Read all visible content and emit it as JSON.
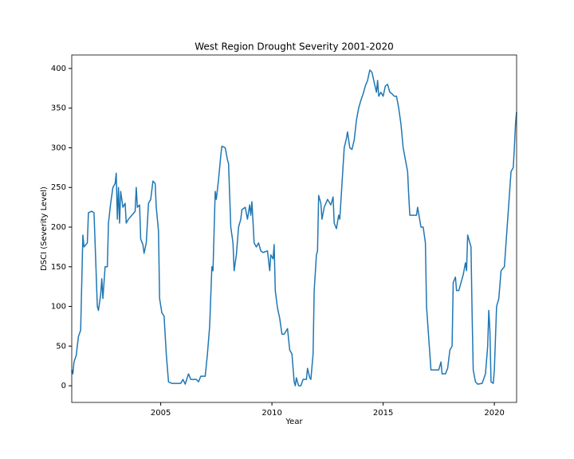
{
  "chart_data": {
    "type": "line",
    "title": "West Region Drought Severity 2001-2020",
    "xlabel": "Year",
    "ylabel": "DSCI (Severity Level)",
    "color": "#1f77b4",
    "xlim": [
      2001,
      2021
    ],
    "xticks": [
      2005,
      2010,
      2015,
      2020
    ],
    "ylim": [
      -21,
      417
    ],
    "yticks": [
      0,
      50,
      100,
      150,
      200,
      250,
      300,
      350,
      400
    ],
    "x": [
      2001.0,
      2001.05,
      2001.1,
      2001.2,
      2001.3,
      2001.4,
      2001.5,
      2001.55,
      2001.7,
      2001.75,
      2001.9,
      2002.0,
      2002.05,
      2002.15,
      2002.2,
      2002.3,
      2002.35,
      2002.4,
      2002.5,
      2002.6,
      2002.65,
      2002.75,
      2002.85,
      2002.95,
      2003.0,
      2003.05,
      2003.1,
      2003.15,
      2003.2,
      2003.3,
      2003.4,
      2003.45,
      2003.55,
      2003.7,
      2003.85,
      2003.9,
      2003.95,
      2004.05,
      2004.1,
      2004.2,
      2004.25,
      2004.35,
      2004.45,
      2004.55,
      2004.65,
      2004.75,
      2004.8,
      2004.9,
      2004.95,
      2005.05,
      2005.15,
      2005.25,
      2005.35,
      2005.5,
      2005.7,
      2005.9,
      2006.0,
      2006.1,
      2006.25,
      2006.35,
      2006.6,
      2006.7,
      2006.8,
      2007.0,
      2007.1,
      2007.2,
      2007.3,
      2007.35,
      2007.45,
      2007.5,
      2007.6,
      2007.7,
      2007.75,
      2007.9,
      2008.0,
      2008.05,
      2008.1,
      2008.15,
      2008.25,
      2008.3,
      2008.4,
      2008.5,
      2008.6,
      2008.65,
      2008.8,
      2008.9,
      2009.0,
      2009.05,
      2009.1,
      2009.2,
      2009.3,
      2009.4,
      2009.5,
      2009.6,
      2009.8,
      2009.9,
      2009.95,
      2010.05,
      2010.1,
      2010.15,
      2010.25,
      2010.35,
      2010.45,
      2010.55,
      2010.7,
      2010.8,
      2010.9,
      2011.0,
      2011.05,
      2011.1,
      2011.2,
      2011.3,
      2011.4,
      2011.55,
      2011.6,
      2011.7,
      2011.75,
      2011.85,
      2011.9,
      2012.0,
      2012.05,
      2012.1,
      2012.2,
      2012.25,
      2012.35,
      2012.5,
      2012.65,
      2012.75,
      2012.8,
      2012.9,
      2013.0,
      2013.05,
      2013.15,
      2013.25,
      2013.35,
      2013.4,
      2013.5,
      2013.6,
      2013.7,
      2013.8,
      2013.9,
      2014.0,
      2014.1,
      2014.2,
      2014.3,
      2014.4,
      2014.5,
      2014.6,
      2014.7,
      2014.75,
      2014.8,
      2014.9,
      2015.0,
      2015.1,
      2015.2,
      2015.3,
      2015.4,
      2015.5,
      2015.6,
      2015.7,
      2015.8,
      2015.9,
      2016.0,
      2016.1,
      2016.15,
      2016.2,
      2016.4,
      2016.5,
      2016.55,
      2016.7,
      2016.8,
      2016.9,
      2016.95,
      2017.05,
      2017.15,
      2017.3,
      2017.5,
      2017.6,
      2017.65,
      2017.8,
      2017.9,
      2018.0,
      2018.1,
      2018.15,
      2018.25,
      2018.3,
      2018.4,
      2018.5,
      2018.6,
      2018.7,
      2018.75,
      2018.8,
      2018.85,
      2018.95,
      2019.0,
      2019.05,
      2019.15,
      2019.25,
      2019.45,
      2019.6,
      2019.7,
      2019.75,
      2019.8,
      2019.85,
      2019.95,
      2020.0,
      2020.05,
      2020.1,
      2020.2,
      2020.3,
      2020.45,
      2020.55,
      2020.65,
      2020.75,
      2020.85,
      2020.9,
      2020.95,
      2021.0
    ],
    "values": [
      20,
      15,
      30,
      38,
      62,
      70,
      190,
      175,
      180,
      218,
      220,
      218,
      180,
      100,
      95,
      115,
      135,
      110,
      150,
      150,
      205,
      230,
      250,
      255,
      268,
      210,
      250,
      205,
      245,
      225,
      230,
      205,
      210,
      215,
      220,
      250,
      225,
      228,
      185,
      178,
      167,
      180,
      230,
      235,
      258,
      255,
      225,
      195,
      110,
      92,
      88,
      40,
      5,
      3,
      3,
      3,
      8,
      2,
      15,
      8,
      8,
      5,
      12,
      12,
      40,
      75,
      150,
      145,
      245,
      235,
      260,
      290,
      302,
      300,
      285,
      280,
      240,
      200,
      180,
      145,
      165,
      200,
      210,
      222,
      225,
      210,
      228,
      215,
      232,
      180,
      175,
      180,
      170,
      168,
      170,
      145,
      165,
      160,
      178,
      120,
      98,
      85,
      65,
      65,
      72,
      45,
      40,
      5,
      0,
      10,
      0,
      0,
      8,
      8,
      22,
      10,
      8,
      40,
      120,
      165,
      170,
      240,
      230,
      210,
      225,
      235,
      228,
      238,
      205,
      198,
      215,
      210,
      255,
      300,
      312,
      320,
      300,
      298,
      310,
      335,
      350,
      360,
      368,
      378,
      385,
      398,
      395,
      382,
      370,
      385,
      365,
      370,
      365,
      378,
      380,
      370,
      368,
      365,
      365,
      350,
      330,
      300,
      285,
      270,
      240,
      215,
      215,
      215,
      225,
      200,
      200,
      180,
      100,
      60,
      20,
      20,
      20,
      30,
      15,
      15,
      22,
      45,
      50,
      130,
      137,
      120,
      120,
      130,
      140,
      155,
      145,
      190,
      185,
      175,
      90,
      20,
      5,
      2,
      3,
      15,
      50,
      95,
      70,
      5,
      3,
      20,
      60,
      100,
      110,
      145,
      150,
      190,
      230,
      270,
      275,
      300,
      330,
      345
    ]
  }
}
